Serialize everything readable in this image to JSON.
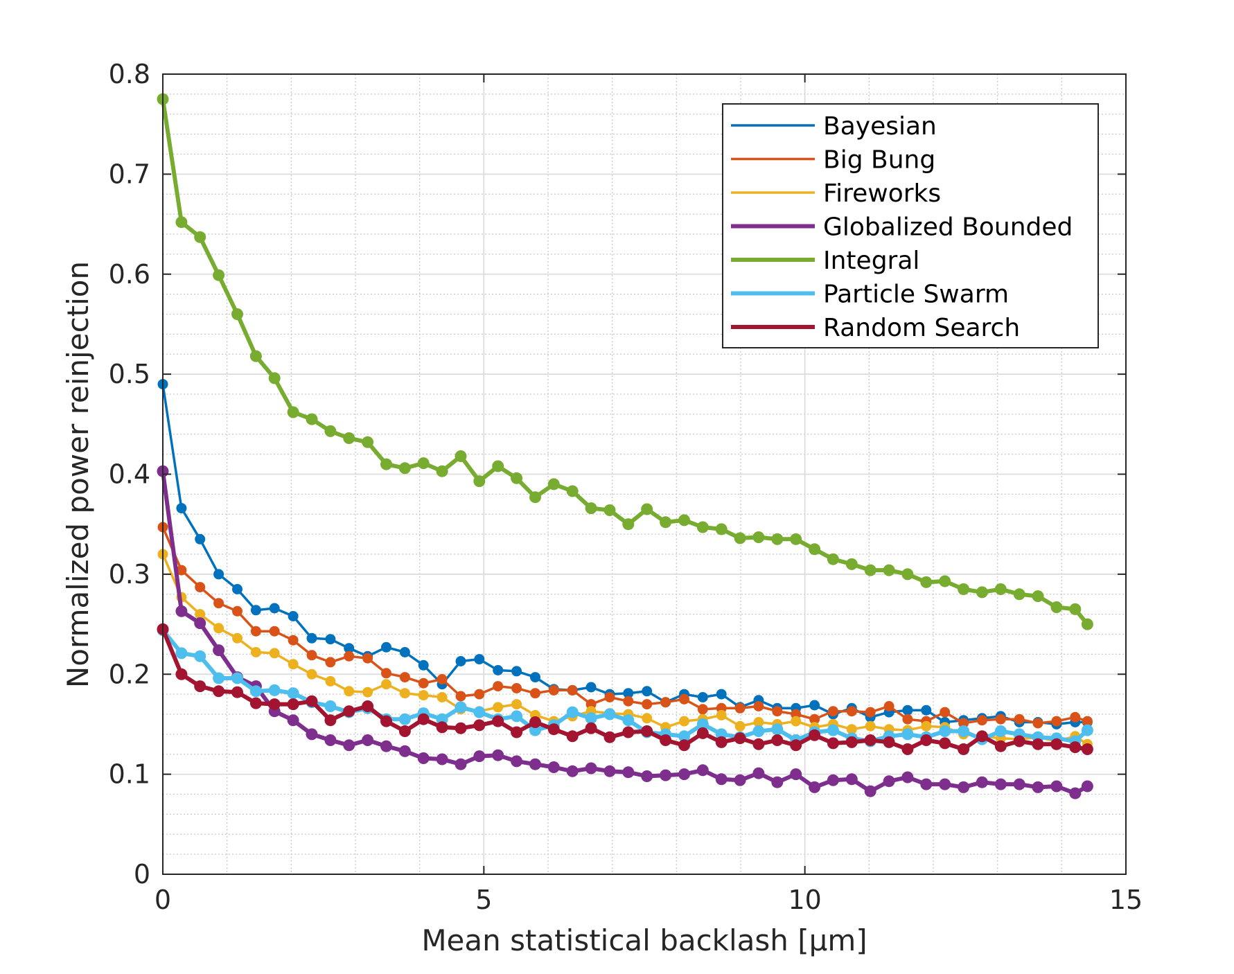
{
  "chart_data": {
    "type": "line",
    "title": "",
    "xlabel": "Mean statistical backlash [μm]",
    "ylabel": "Normalized power reinjection",
    "xlim": [
      0,
      15
    ],
    "ylim": [
      0,
      0.8
    ],
    "xticks": [
      0,
      5,
      10,
      15
    ],
    "xtick_labels": [
      "0",
      "5",
      "10",
      "15"
    ],
    "yticks": [
      0,
      0.1,
      0.2,
      0.3,
      0.4,
      0.5,
      0.6,
      0.7,
      0.8
    ],
    "ytick_labels": [
      "0",
      "0.1",
      "0.2",
      "0.3",
      "0.4",
      "0.5",
      "0.6",
      "0.7",
      "0.8"
    ],
    "grid": true,
    "minor_grid": true,
    "legend_position": "top-right",
    "x": [
      0,
      0.29,
      0.58,
      0.87,
      1.16,
      1.45,
      1.74,
      2.03,
      2.32,
      2.61,
      2.9,
      3.19,
      3.48,
      3.77,
      4.06,
      4.35,
      4.64,
      4.93,
      5.22,
      5.51,
      5.8,
      6.09,
      6.38,
      6.67,
      6.96,
      7.25,
      7.54,
      7.83,
      8.12,
      8.41,
      8.7,
      8.99,
      9.28,
      9.57,
      9.86,
      10.15,
      10.44,
      10.73,
      11.02,
      11.31,
      11.6,
      11.89,
      12.18,
      12.47,
      12.76,
      13.05,
      13.34,
      13.63,
      13.92,
      14.21,
      14.4
    ],
    "series": [
      {
        "name": "Bayesian",
        "color": "#0072BD",
        "line_width": 3.5,
        "marker_r": 7.5,
        "values": [
          0.49,
          0.366,
          0.335,
          0.3,
          0.285,
          0.264,
          0.266,
          0.258,
          0.236,
          0.235,
          0.226,
          0.218,
          0.227,
          0.222,
          0.209,
          0.19,
          0.213,
          0.215,
          0.204,
          0.203,
          0.197,
          0.185,
          0.184,
          0.187,
          0.18,
          0.181,
          0.183,
          0.172,
          0.18,
          0.177,
          0.18,
          0.167,
          0.174,
          0.166,
          0.166,
          0.169,
          0.16,
          0.166,
          0.157,
          0.162,
          0.164,
          0.164,
          0.152,
          0.154,
          0.156,
          0.158,
          0.152,
          0.152,
          0.15,
          0.152,
          0.152
        ]
      },
      {
        "name": "Big Bung",
        "color": "#D95319",
        "line_width": 3.5,
        "marker_r": 7.5,
        "values": [
          0.347,
          0.304,
          0.287,
          0.271,
          0.263,
          0.243,
          0.243,
          0.234,
          0.219,
          0.212,
          0.218,
          0.216,
          0.201,
          0.197,
          0.191,
          0.195,
          0.178,
          0.18,
          0.188,
          0.186,
          0.181,
          0.184,
          0.184,
          0.17,
          0.177,
          0.173,
          0.17,
          0.172,
          0.175,
          0.165,
          0.166,
          0.166,
          0.168,
          0.163,
          0.16,
          0.155,
          0.163,
          0.163,
          0.162,
          0.168,
          0.155,
          0.153,
          0.162,
          0.151,
          0.154,
          0.155,
          0.155,
          0.151,
          0.153,
          0.157,
          0.153
        ]
      },
      {
        "name": "Fireworks",
        "color": "#EDB120",
        "line_width": 3.5,
        "marker_r": 7.5,
        "values": [
          0.32,
          0.277,
          0.26,
          0.246,
          0.236,
          0.222,
          0.221,
          0.21,
          0.2,
          0.193,
          0.183,
          0.182,
          0.19,
          0.181,
          0.179,
          0.177,
          0.165,
          0.163,
          0.167,
          0.17,
          0.159,
          0.153,
          0.158,
          0.163,
          0.161,
          0.16,
          0.156,
          0.147,
          0.153,
          0.155,
          0.159,
          0.148,
          0.152,
          0.15,
          0.153,
          0.147,
          0.15,
          0.145,
          0.148,
          0.145,
          0.144,
          0.148,
          0.147,
          0.14,
          0.138,
          0.136,
          0.135,
          0.137,
          0.133,
          0.138,
          0.13
        ]
      },
      {
        "name": "Globalized Bounded",
        "color": "#7E2F8E",
        "line_width": 6,
        "marker_r": 8.5,
        "values": [
          0.403,
          0.263,
          0.251,
          0.224,
          0.197,
          0.188,
          0.163,
          0.154,
          0.14,
          0.134,
          0.129,
          0.134,
          0.128,
          0.123,
          0.116,
          0.115,
          0.11,
          0.118,
          0.119,
          0.113,
          0.11,
          0.107,
          0.103,
          0.106,
          0.103,
          0.102,
          0.098,
          0.099,
          0.1,
          0.104,
          0.095,
          0.094,
          0.101,
          0.092,
          0.1,
          0.087,
          0.094,
          0.095,
          0.083,
          0.093,
          0.097,
          0.09,
          0.09,
          0.087,
          0.092,
          0.09,
          0.09,
          0.087,
          0.088,
          0.081,
          0.088
        ]
      },
      {
        "name": "Integral",
        "color": "#77AC30",
        "line_width": 6,
        "marker_r": 8.5,
        "values": [
          0.775,
          0.652,
          0.637,
          0.599,
          0.56,
          0.518,
          0.496,
          0.462,
          0.455,
          0.443,
          0.436,
          0.432,
          0.41,
          0.406,
          0.411,
          0.403,
          0.418,
          0.393,
          0.408,
          0.396,
          0.377,
          0.39,
          0.383,
          0.366,
          0.364,
          0.35,
          0.365,
          0.352,
          0.354,
          0.347,
          0.345,
          0.336,
          0.337,
          0.335,
          0.335,
          0.325,
          0.315,
          0.31,
          0.304,
          0.304,
          0.3,
          0.292,
          0.293,
          0.285,
          0.282,
          0.285,
          0.28,
          0.278,
          0.267,
          0.265,
          0.25
        ]
      },
      {
        "name": "Particle Swarm",
        "color": "#4DBEEE",
        "line_width": 6,
        "marker_r": 8.5,
        "values": [
          0.244,
          0.221,
          0.218,
          0.196,
          0.196,
          0.183,
          0.184,
          0.181,
          0.172,
          0.168,
          0.162,
          0.166,
          0.155,
          0.155,
          0.161,
          0.155,
          0.167,
          0.162,
          0.155,
          0.158,
          0.144,
          0.149,
          0.162,
          0.156,
          0.16,
          0.154,
          0.142,
          0.14,
          0.138,
          0.15,
          0.14,
          0.137,
          0.143,
          0.145,
          0.134,
          0.142,
          0.144,
          0.136,
          0.133,
          0.138,
          0.14,
          0.137,
          0.143,
          0.143,
          0.135,
          0.143,
          0.14,
          0.137,
          0.136,
          0.133,
          0.144
        ]
      },
      {
        "name": "Random Search",
        "color": "#A2142F",
        "line_width": 6,
        "marker_r": 8.5,
        "values": [
          0.245,
          0.2,
          0.188,
          0.183,
          0.182,
          0.171,
          0.17,
          0.17,
          0.173,
          0.154,
          0.163,
          0.168,
          0.153,
          0.143,
          0.155,
          0.147,
          0.146,
          0.149,
          0.153,
          0.142,
          0.152,
          0.145,
          0.138,
          0.146,
          0.137,
          0.142,
          0.143,
          0.134,
          0.129,
          0.141,
          0.132,
          0.136,
          0.13,
          0.134,
          0.129,
          0.139,
          0.131,
          0.132,
          0.134,
          0.132,
          0.125,
          0.134,
          0.131,
          0.125,
          0.138,
          0.128,
          0.133,
          0.13,
          0.13,
          0.127,
          0.125
        ]
      }
    ]
  }
}
